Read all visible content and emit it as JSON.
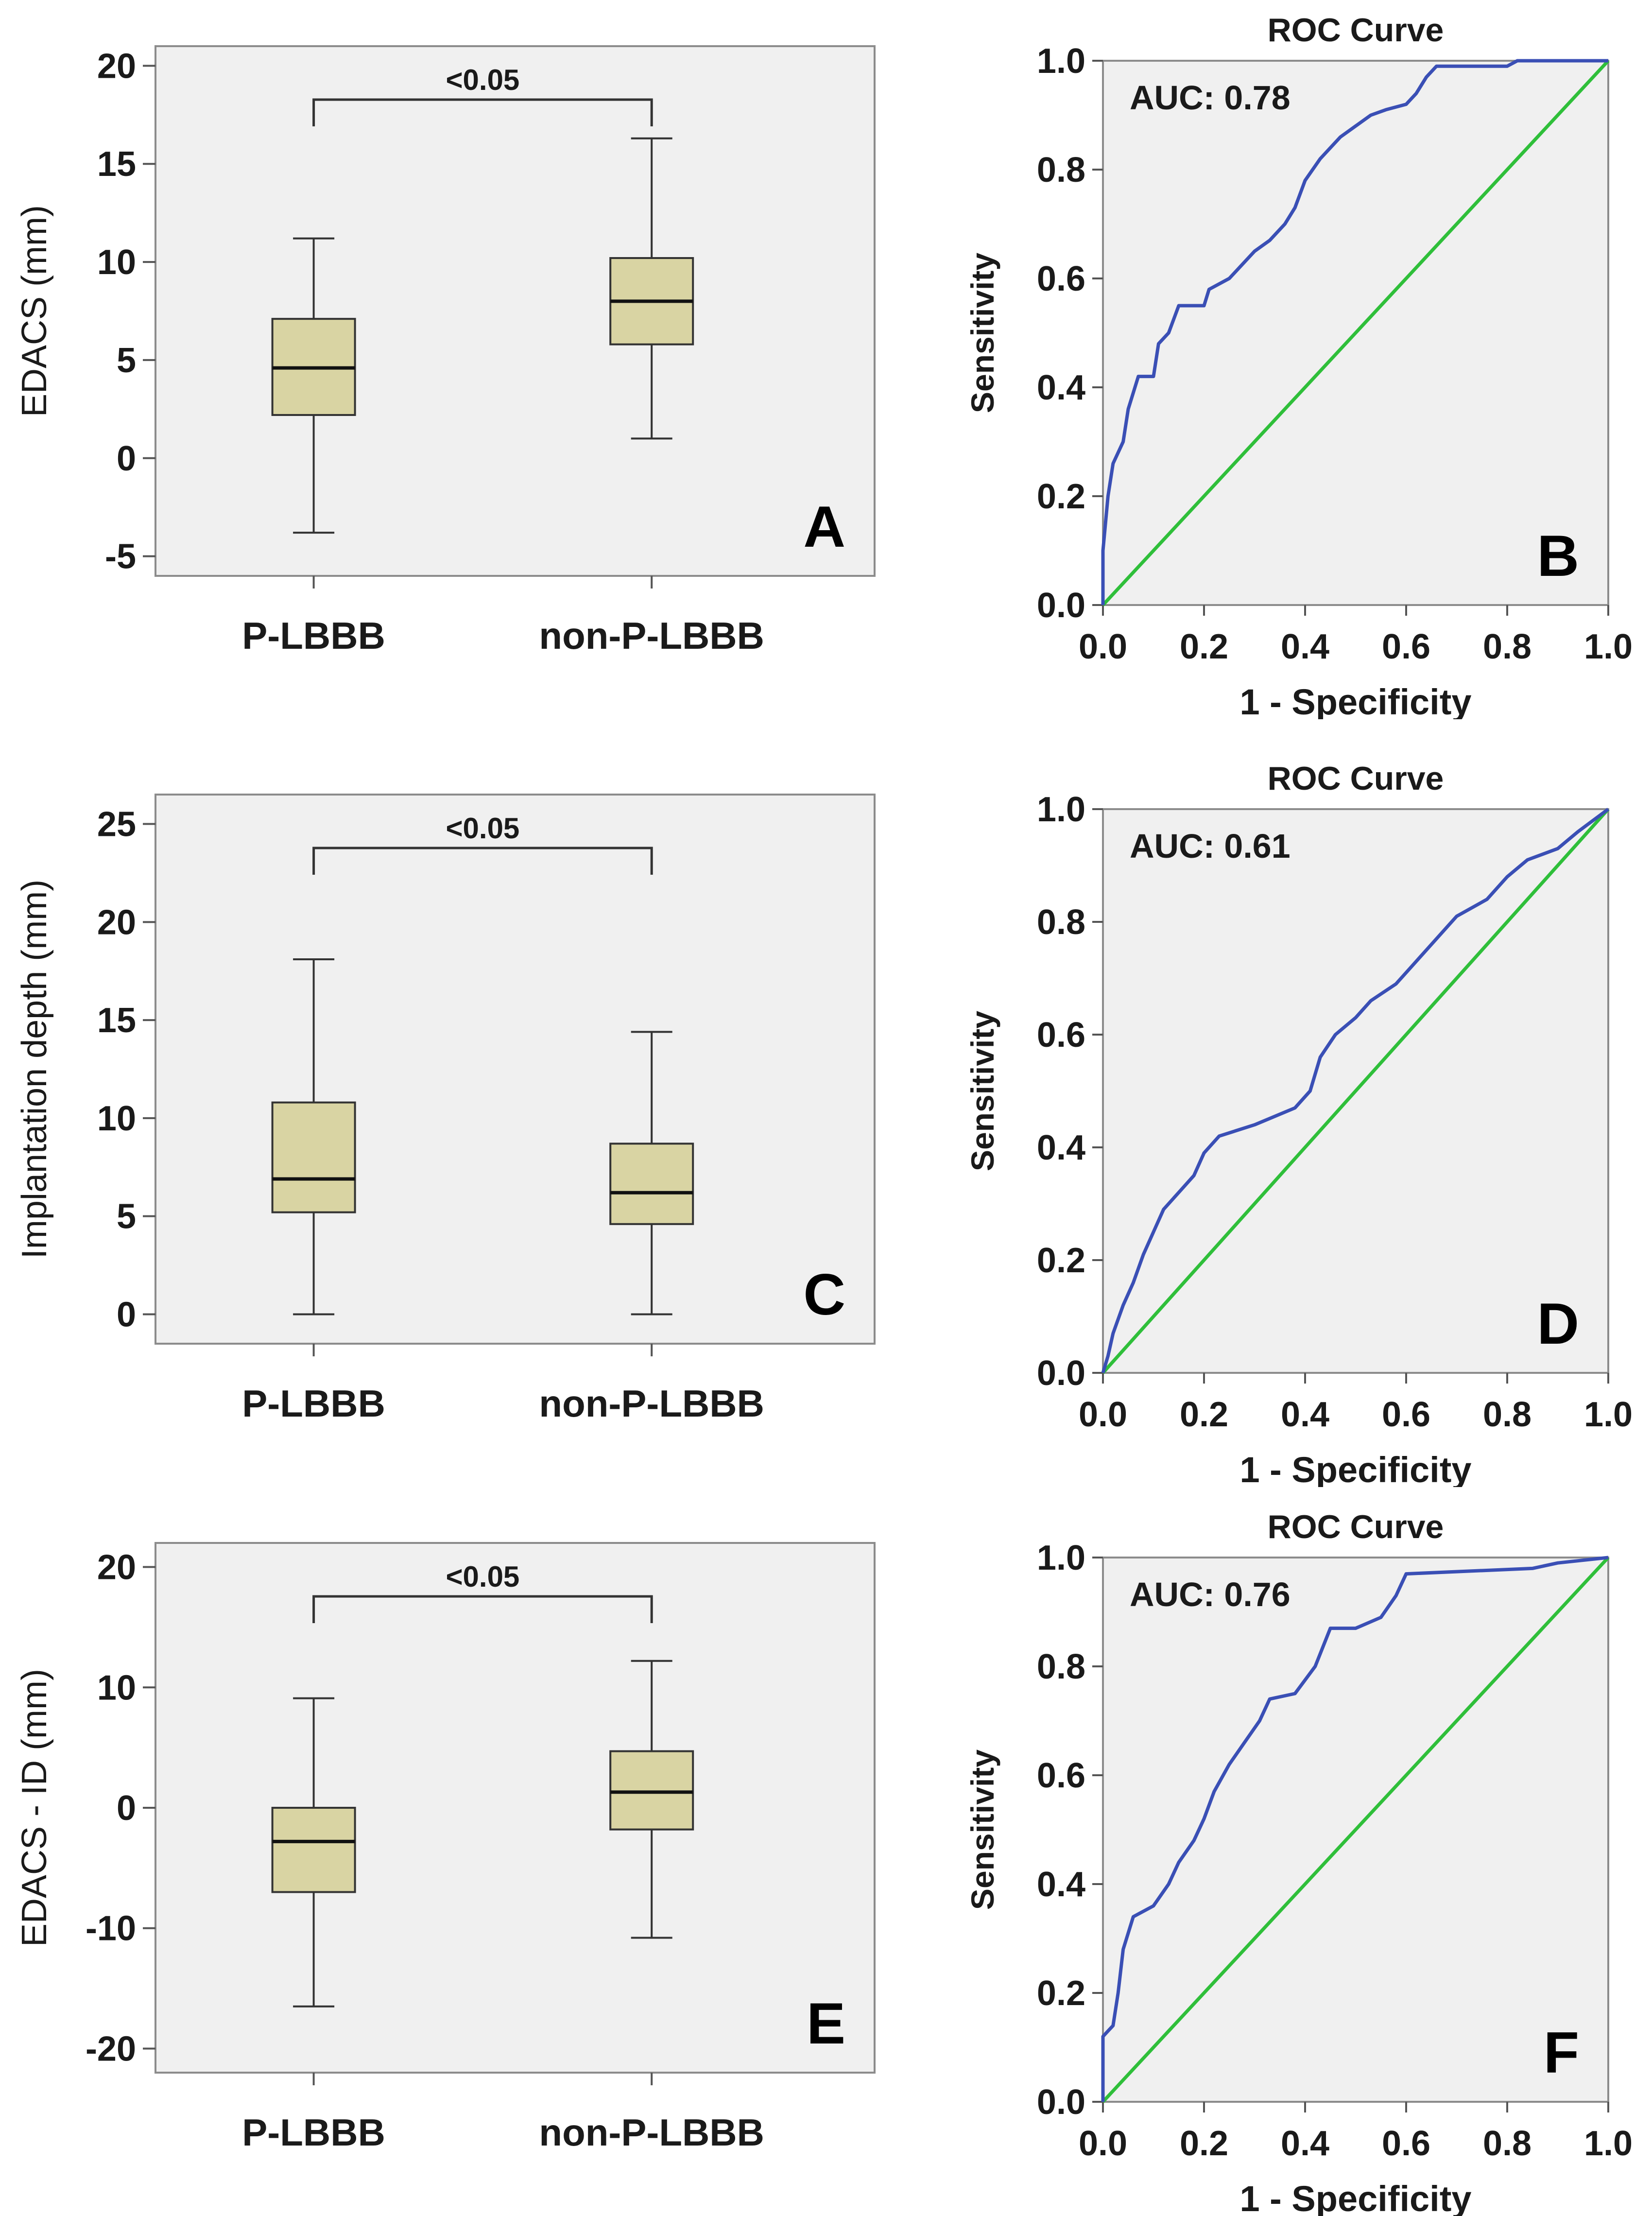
{
  "chart_data": [
    {
      "id": "A",
      "type": "box",
      "panel_letter": "A",
      "ylabel": "EDACS (mm)",
      "ylim": [
        -6,
        21
      ],
      "yticks": [
        -5,
        0,
        5,
        10,
        15,
        20
      ],
      "categories": [
        "P-LBBB",
        "non-P-LBBB"
      ],
      "significance": "<0.05",
      "boxes": [
        {
          "category": "P-LBBB",
          "min": -3.8,
          "q1": 2.2,
          "median": 4.6,
          "q3": 7.1,
          "max": 11.2
        },
        {
          "category": "non-P-LBBB",
          "min": 1.0,
          "q1": 5.8,
          "median": 8.0,
          "q3": 10.2,
          "max": 16.3
        }
      ]
    },
    {
      "id": "B",
      "type": "line",
      "panel_letter": "B",
      "title": "ROC Curve",
      "xlabel": "1 - Specificity",
      "ylabel": "Sensitivity",
      "xlim": [
        0,
        1
      ],
      "ylim": [
        0,
        1
      ],
      "ticks": [
        "0.0",
        "0.2",
        "0.4",
        "0.6",
        "0.8",
        "1.0"
      ],
      "auc_label": "AUC: 0.78",
      "series": [
        {
          "name": "ROC",
          "points": [
            [
              0,
              0
            ],
            [
              0,
              0.1
            ],
            [
              0.01,
              0.2
            ],
            [
              0.02,
              0.26
            ],
            [
              0.04,
              0.3
            ],
            [
              0.05,
              0.36
            ],
            [
              0.07,
              0.42
            ],
            [
              0.1,
              0.42
            ],
            [
              0.11,
              0.48
            ],
            [
              0.13,
              0.5
            ],
            [
              0.15,
              0.55
            ],
            [
              0.2,
              0.55
            ],
            [
              0.21,
              0.58
            ],
            [
              0.25,
              0.6
            ],
            [
              0.27,
              0.62
            ],
            [
              0.3,
              0.65
            ],
            [
              0.33,
              0.67
            ],
            [
              0.36,
              0.7
            ],
            [
              0.38,
              0.73
            ],
            [
              0.4,
              0.78
            ],
            [
              0.43,
              0.82
            ],
            [
              0.47,
              0.86
            ],
            [
              0.5,
              0.88
            ],
            [
              0.53,
              0.9
            ],
            [
              0.56,
              0.91
            ],
            [
              0.6,
              0.92
            ],
            [
              0.62,
              0.94
            ],
            [
              0.64,
              0.97
            ],
            [
              0.66,
              0.99
            ],
            [
              0.8,
              0.99
            ],
            [
              0.82,
              1.0
            ],
            [
              1.0,
              1.0
            ]
          ]
        },
        {
          "name": "Reference",
          "points": [
            [
              0,
              0
            ],
            [
              1,
              1
            ]
          ]
        }
      ]
    },
    {
      "id": "C",
      "type": "box",
      "panel_letter": "C",
      "ylabel": "Implantation depth (mm)",
      "ylim": [
        -1.5,
        26.5
      ],
      "yticks": [
        0,
        5,
        10,
        15,
        20,
        25
      ],
      "categories": [
        "P-LBBB",
        "non-P-LBBB"
      ],
      "significance": "<0.05",
      "boxes": [
        {
          "category": "P-LBBB",
          "min": 0,
          "q1": 5.2,
          "median": 6.9,
          "q3": 10.8,
          "max": 18.1
        },
        {
          "category": "non-P-LBBB",
          "min": 0,
          "q1": 4.6,
          "median": 6.2,
          "q3": 8.7,
          "max": 14.4
        }
      ]
    },
    {
      "id": "D",
      "type": "line",
      "panel_letter": "D",
      "title": "ROC Curve",
      "xlabel": "1 - Specificity",
      "ylabel": "Sensitivity",
      "xlim": [
        0,
        1
      ],
      "ylim": [
        0,
        1
      ],
      "ticks": [
        "0.0",
        "0.2",
        "0.4",
        "0.6",
        "0.8",
        "1.0"
      ],
      "auc_label": "AUC: 0.61",
      "series": [
        {
          "name": "ROC",
          "points": [
            [
              0,
              0
            ],
            [
              0.01,
              0.03
            ],
            [
              0.02,
              0.07
            ],
            [
              0.04,
              0.12
            ],
            [
              0.06,
              0.16
            ],
            [
              0.08,
              0.21
            ],
            [
              0.1,
              0.25
            ],
            [
              0.12,
              0.29
            ],
            [
              0.15,
              0.32
            ],
            [
              0.18,
              0.35
            ],
            [
              0.2,
              0.39
            ],
            [
              0.23,
              0.42
            ],
            [
              0.3,
              0.44
            ],
            [
              0.38,
              0.47
            ],
            [
              0.41,
              0.5
            ],
            [
              0.43,
              0.56
            ],
            [
              0.46,
              0.6
            ],
            [
              0.5,
              0.63
            ],
            [
              0.53,
              0.66
            ],
            [
              0.58,
              0.69
            ],
            [
              0.62,
              0.73
            ],
            [
              0.66,
              0.77
            ],
            [
              0.7,
              0.81
            ],
            [
              0.76,
              0.84
            ],
            [
              0.8,
              0.88
            ],
            [
              0.84,
              0.91
            ],
            [
              0.9,
              0.93
            ],
            [
              0.94,
              0.96
            ],
            [
              0.97,
              0.98
            ],
            [
              1.0,
              1.0
            ]
          ]
        },
        {
          "name": "Reference",
          "points": [
            [
              0,
              0
            ],
            [
              1,
              1
            ]
          ]
        }
      ]
    },
    {
      "id": "E",
      "type": "box",
      "panel_letter": "E",
      "ylabel": "EDACS - ID (mm)",
      "ylim": [
        -22,
        22
      ],
      "yticks": [
        -20,
        -10,
        0,
        10,
        20
      ],
      "categories": [
        "P-LBBB",
        "non-P-LBBB"
      ],
      "significance": "<0.05",
      "boxes": [
        {
          "category": "P-LBBB",
          "min": -16.5,
          "q1": -7.0,
          "median": -2.8,
          "q3": 0,
          "max": 9.1
        },
        {
          "category": "non-P-LBBB",
          "min": -10.8,
          "q1": -1.8,
          "median": 1.3,
          "q3": 4.7,
          "max": 12.2
        }
      ]
    },
    {
      "id": "F",
      "type": "line",
      "panel_letter": "F",
      "title": "ROC Curve",
      "xlabel": "1 - Specificity",
      "ylabel": "Sensitivity",
      "xlim": [
        0,
        1
      ],
      "ylim": [
        0,
        1
      ],
      "ticks": [
        "0.0",
        "0.2",
        "0.4",
        "0.6",
        "0.8",
        "1.0"
      ],
      "auc_label": "AUC: 0.76",
      "series": [
        {
          "name": "ROC",
          "points": [
            [
              0,
              0
            ],
            [
              0,
              0.12
            ],
            [
              0.02,
              0.14
            ],
            [
              0.03,
              0.2
            ],
            [
              0.04,
              0.28
            ],
            [
              0.06,
              0.34
            ],
            [
              0.1,
              0.36
            ],
            [
              0.13,
              0.4
            ],
            [
              0.15,
              0.44
            ],
            [
              0.18,
              0.48
            ],
            [
              0.2,
              0.52
            ],
            [
              0.22,
              0.57
            ],
            [
              0.25,
              0.62
            ],
            [
              0.28,
              0.66
            ],
            [
              0.31,
              0.7
            ],
            [
              0.33,
              0.74
            ],
            [
              0.38,
              0.75
            ],
            [
              0.42,
              0.8
            ],
            [
              0.45,
              0.87
            ],
            [
              0.5,
              0.87
            ],
            [
              0.55,
              0.89
            ],
            [
              0.58,
              0.93
            ],
            [
              0.6,
              0.97
            ],
            [
              0.85,
              0.98
            ],
            [
              0.9,
              0.99
            ],
            [
              1.0,
              1.0
            ]
          ]
        },
        {
          "name": "Reference",
          "points": [
            [
              0,
              0
            ],
            [
              1,
              1
            ]
          ]
        }
      ]
    }
  ]
}
